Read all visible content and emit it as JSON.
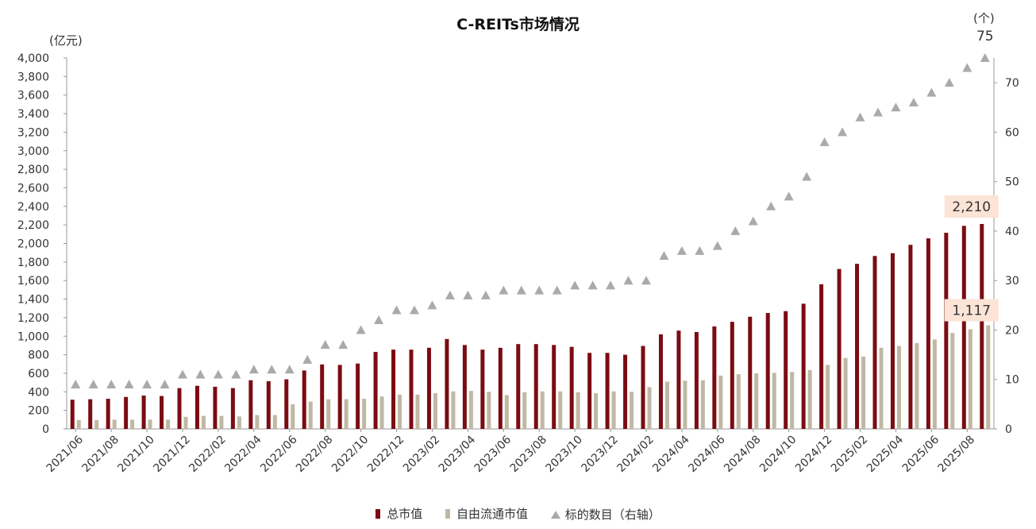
{
  "chart_data": {
    "type": "bar",
    "title": "C-REITs市场情况",
    "y_left_unit": "(亿元)",
    "y_right_unit": "(个)",
    "ylim": [
      0,
      4000
    ],
    "y_ticks": [
      "0",
      "200",
      "400",
      "600",
      "800",
      "1,000",
      "1,200",
      "1,400",
      "1,600",
      "1,800",
      "2,000",
      "2,200",
      "2,400",
      "2,600",
      "2,800",
      "3,000",
      "3,200",
      "3,400",
      "3,600",
      "3,800",
      "4,000"
    ],
    "y2lim": [
      0,
      75
    ],
    "y2_ticks": [
      "0",
      "10",
      "20",
      "30",
      "40",
      "50",
      "60",
      "70"
    ],
    "x_tick_labels": [
      "2021/06",
      "2021/08",
      "2021/10",
      "2021/12",
      "2022/02",
      "2022/04",
      "2022/06",
      "2022/08",
      "2022/10",
      "2022/12",
      "2023/02",
      "2023/04",
      "2023/06",
      "2023/08",
      "2023/10",
      "2023/12",
      "2024/02",
      "2024/04",
      "2024/06",
      "2024/08",
      "2024/10",
      "2024/12",
      "2025/02",
      "2025/04",
      "2025/06",
      "2025/08"
    ],
    "categories": [
      "2021/06",
      "2021/07",
      "2021/08",
      "2021/09",
      "2021/10",
      "2021/11",
      "2021/12",
      "2022/01",
      "2022/02",
      "2022/03",
      "2022/04",
      "2022/05",
      "2022/06",
      "2022/07",
      "2022/08",
      "2022/09",
      "2022/10",
      "2022/11",
      "2022/12",
      "2023/01",
      "2023/02",
      "2023/03",
      "2023/04",
      "2023/05",
      "2023/06",
      "2023/07",
      "2023/08",
      "2023/09",
      "2023/10",
      "2023/11",
      "2023/12",
      "2024/01",
      "2024/02",
      "2024/03",
      "2024/04",
      "2024/05",
      "2024/06",
      "2024/07",
      "2024/08",
      "2024/09",
      "2024/10",
      "2024/11",
      "2024/12",
      "2025/01",
      "2025/02",
      "2025/03",
      "2025/04",
      "2025/05",
      "2025/06",
      "2025/07",
      "2025/08",
      "2025/09"
    ],
    "series": [
      {
        "name": "总市值",
        "kind": "bar",
        "axis": "left",
        "color": "#7b0c12",
        "values": [
          315,
          320,
          325,
          345,
          360,
          355,
          440,
          465,
          455,
          440,
          525,
          515,
          535,
          630,
          695,
          690,
          705,
          830,
          855,
          855,
          875,
          970,
          905,
          855,
          875,
          915,
          915,
          905,
          885,
          820,
          820,
          800,
          895,
          1020,
          1060,
          1045,
          1105,
          1155,
          1210,
          1250,
          1270,
          1350,
          1560,
          1725,
          1780,
          1865,
          1895,
          1985,
          2055,
          2115,
          2190,
          2210
        ]
      },
      {
        "name": "自由流通市值",
        "kind": "bar",
        "axis": "left",
        "color": "#bfb8a3",
        "values": [
          95,
          95,
          100,
          100,
          100,
          100,
          130,
          140,
          140,
          135,
          150,
          150,
          265,
          295,
          320,
          320,
          325,
          350,
          370,
          370,
          385,
          405,
          410,
          400,
          365,
          395,
          405,
          405,
          395,
          385,
          405,
          400,
          450,
          510,
          520,
          525,
          575,
          590,
          600,
          605,
          615,
          635,
          690,
          765,
          780,
          875,
          895,
          925,
          965,
          1035,
          1075,
          1117
        ]
      },
      {
        "name": "标的数目(右轴)",
        "kind": "marker",
        "axis": "right",
        "color": "#aaaaaa",
        "values": [
          9,
          9,
          9,
          9,
          9,
          9,
          11,
          11,
          11,
          11,
          12,
          12,
          12,
          14,
          17,
          17,
          20,
          22,
          24,
          24,
          25,
          27,
          27,
          27,
          28,
          28,
          28,
          28,
          29,
          29,
          29,
          30,
          30,
          35,
          36,
          36,
          37,
          40,
          42,
          45,
          47,
          51,
          58,
          60,
          63,
          64,
          65,
          66,
          68,
          70,
          73,
          75
        ]
      }
    ],
    "annotations": [
      {
        "text": "2,210",
        "series": "总市值",
        "category": "2025/09"
      },
      {
        "text": "1,117",
        "series": "自由流通市值",
        "category": "2025/09"
      },
      {
        "text": "75",
        "series": "标的数目(右轴)",
        "category": "2025/09"
      }
    ],
    "legend": {
      "position": "bottom",
      "items": [
        {
          "label": "总市值",
          "color": "#7b0c12",
          "marker": "bar"
        },
        {
          "label": "自由流通市值",
          "color": "#bfb8a3",
          "marker": "bar"
        },
        {
          "label": "标的数目（右轴）",
          "color": "#aaaaaa",
          "marker": "triangle"
        }
      ]
    },
    "grid": false
  }
}
